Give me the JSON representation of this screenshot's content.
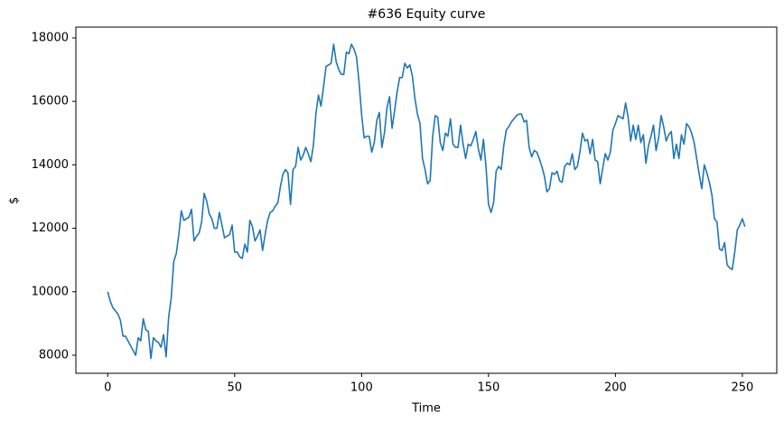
{
  "chart_data": {
    "type": "line",
    "title": "#636 Equity curve",
    "x_label": "Time",
    "y_label": "$",
    "color": "#1f77b4",
    "x": [
      0,
      1,
      2,
      3,
      4,
      5,
      6,
      7,
      8,
      9,
      10,
      11,
      12,
      13,
      14,
      15,
      16,
      17,
      18,
      19,
      20,
      21,
      22,
      23,
      24,
      25,
      26,
      27,
      28,
      29,
      30,
      31,
      32,
      33,
      34,
      35,
      36,
      37,
      38,
      39,
      40,
      41,
      42,
      43,
      44,
      45,
      46,
      47,
      48,
      49,
      50,
      51,
      52,
      53,
      54,
      55,
      56,
      57,
      58,
      59,
      60,
      61,
      62,
      63,
      64,
      65,
      66,
      67,
      68,
      69,
      70,
      71,
      72,
      73,
      74,
      75,
      76,
      77,
      78,
      79,
      80,
      81,
      82,
      83,
      84,
      85,
      86,
      87,
      88,
      89,
      90,
      91,
      92,
      93,
      94,
      95,
      96,
      97,
      98,
      99,
      100,
      101,
      102,
      103,
      104,
      105,
      106,
      107,
      108,
      109,
      110,
      111,
      112,
      113,
      114,
      115,
      116,
      117,
      118,
      119,
      120,
      121,
      122,
      123,
      124,
      125,
      126,
      127,
      128,
      129,
      130,
      131,
      132,
      133,
      134,
      135,
      136,
      137,
      138,
      139,
      140,
      141,
      142,
      143,
      144,
      145,
      146,
      147,
      148,
      149,
      150,
      151,
      152,
      153,
      154,
      155,
      156,
      157,
      158,
      159,
      160,
      161,
      162,
      163,
      164,
      165,
      166,
      167,
      168,
      169,
      170,
      171,
      172,
      173,
      174,
      175,
      176,
      177,
      178,
      179,
      180,
      181,
      182,
      183,
      184,
      185,
      186,
      187,
      188,
      189,
      190,
      191,
      192,
      193,
      194,
      195,
      196,
      197,
      198,
      199,
      200,
      201,
      202,
      203,
      204,
      205,
      206,
      207,
      208,
      209,
      210,
      211,
      212,
      213,
      214,
      215,
      216,
      217,
      218,
      219,
      220,
      221,
      222,
      223,
      224,
      225,
      226,
      227,
      228,
      229,
      230,
      231,
      232,
      233,
      234,
      235,
      236,
      237,
      238,
      239,
      240,
      241,
      242,
      243,
      244,
      245,
      246,
      247,
      248,
      249,
      250,
      251
    ],
    "values": [
      10000,
      9700,
      9500,
      9400,
      9300,
      9100,
      8600,
      8600,
      8450,
      8300,
      8150,
      8000,
      8550,
      8450,
      9150,
      8800,
      8750,
      7900,
      8550,
      8450,
      8400,
      8250,
      8650,
      7950,
      9200,
      9800,
      10950,
      11200,
      11800,
      12550,
      12250,
      12300,
      12350,
      12600,
      11600,
      11750,
      11850,
      12200,
      13100,
      12850,
      12450,
      12300,
      12000,
      12000,
      12500,
      12100,
      11700,
      11750,
      11800,
      12100,
      11250,
      11250,
      11100,
      11050,
      11500,
      11250,
      12250,
      12050,
      11600,
      11750,
      11950,
      11300,
      11800,
      12250,
      12500,
      12550,
      12700,
      12800,
      13300,
      13700,
      13850,
      13750,
      12750,
      13850,
      13950,
      14550,
      14150,
      14300,
      14550,
      14350,
      14100,
      14600,
      15600,
      16200,
      15850,
      16450,
      17100,
      17150,
      17200,
      17800,
      17250,
      17000,
      16850,
      16850,
      17550,
      17500,
      17800,
      17650,
      17400,
      16600,
      15600,
      14850,
      14900,
      14900,
      14400,
      14700,
      15400,
      15650,
      14550,
      15000,
      15800,
      16150,
      15150,
      15700,
      16300,
      16750,
      16750,
      17200,
      17050,
      17150,
      16800,
      16100,
      15600,
      15300,
      14200,
      13850,
      13400,
      13500,
      14900,
      15550,
      15500,
      14700,
      14450,
      15000,
      14900,
      15450,
      14650,
      14550,
      14550,
      15250,
      14650,
      14200,
      14650,
      14600,
      14800,
      15050,
      14500,
      14150,
      14800,
      13950,
      12750,
      12500,
      12800,
      13800,
      13950,
      13850,
      14600,
      15100,
      15200,
      15350,
      15450,
      15550,
      15600,
      15600,
      15350,
      15400,
      14550,
      14250,
      14450,
      14400,
      14200,
      13950,
      13650,
      13150,
      13250,
      13750,
      13700,
      13800,
      13500,
      13450,
      13950,
      14050,
      14000,
      14350,
      13850,
      13950,
      14400,
      15000,
      14750,
      14800,
      14350,
      14800,
      14150,
      14100,
      13400,
      13900,
      14350,
      14150,
      14400,
      15100,
      15300,
      15550,
      15500,
      15450,
      15950,
      15500,
      14750,
      15250,
      14800,
      15250,
      14700,
      14950,
      14050,
      14600,
      14900,
      15250,
      14450,
      14850,
      15550,
      15200,
      14750,
      14950,
      15050,
      14200,
      14650,
      14200,
      14950,
      14650,
      15300,
      15200,
      15000,
      14700,
      14200,
      13700,
      13250,
      14000,
      13750,
      13450,
      13050,
      12300,
      12200,
      11350,
      11300,
      11550,
      10850,
      10750,
      10700,
      11250,
      11950,
      12100,
      12300,
      12050
    ],
    "xlim": [
      -12.55,
      263.55
    ],
    "ylim": [
      7430,
      18340
    ],
    "xticks": [
      0,
      50,
      100,
      150,
      200,
      250
    ],
    "yticks": [
      8000,
      10000,
      12000,
      14000,
      16000,
      18000
    ]
  }
}
